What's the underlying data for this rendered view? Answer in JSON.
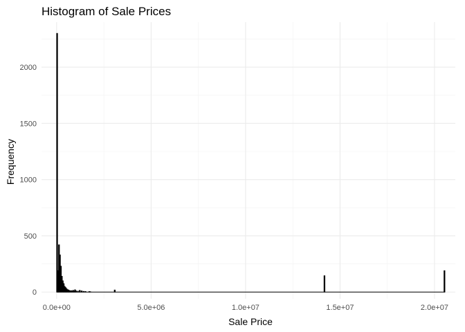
{
  "chart_data": {
    "type": "bar",
    "title": "Histogram of Sale Prices",
    "xlabel": "Sale Price",
    "ylabel": "Frequency",
    "xlim": [
      -800000,
      21100000
    ],
    "ylim": [
      -60,
      2400
    ],
    "x_ticks": [
      {
        "value": 0,
        "label": "0.0e+00"
      },
      {
        "value": 5000000,
        "label": "5.0e+06"
      },
      {
        "value": 10000000,
        "label": "1.0e+07"
      },
      {
        "value": 15000000,
        "label": "1.5e+07"
      },
      {
        "value": 20000000,
        "label": "2.0e+07"
      }
    ],
    "y_ticks": [
      {
        "value": 0,
        "label": "0"
      },
      {
        "value": 500,
        "label": "500"
      },
      {
        "value": 1000,
        "label": "1000"
      },
      {
        "value": 1500,
        "label": "1500"
      },
      {
        "value": 2000,
        "label": "2000"
      }
    ],
    "grid": true,
    "bin_width": 50000,
    "bins": [
      {
        "x": 0,
        "count": 2300
      },
      {
        "x": 50000,
        "count": 190
      },
      {
        "x": 100000,
        "count": 420
      },
      {
        "x": 150000,
        "count": 330
      },
      {
        "x": 200000,
        "count": 230
      },
      {
        "x": 250000,
        "count": 140
      },
      {
        "x": 300000,
        "count": 100
      },
      {
        "x": 350000,
        "count": 75
      },
      {
        "x": 400000,
        "count": 50
      },
      {
        "x": 450000,
        "count": 40
      },
      {
        "x": 500000,
        "count": 30
      },
      {
        "x": 550000,
        "count": 22
      },
      {
        "x": 600000,
        "count": 18
      },
      {
        "x": 650000,
        "count": 14
      },
      {
        "x": 700000,
        "count": 10
      },
      {
        "x": 750000,
        "count": 12
      },
      {
        "x": 800000,
        "count": 8
      },
      {
        "x": 850000,
        "count": 15
      },
      {
        "x": 900000,
        "count": 7
      },
      {
        "x": 950000,
        "count": 20
      },
      {
        "x": 1000000,
        "count": 10
      },
      {
        "x": 1100000,
        "count": 8
      },
      {
        "x": 1200000,
        "count": 15
      },
      {
        "x": 1300000,
        "count": 10
      },
      {
        "x": 1400000,
        "count": 6
      },
      {
        "x": 1500000,
        "count": 5
      },
      {
        "x": 1700000,
        "count": 4
      },
      {
        "x": 1750000,
        "count": 3
      },
      {
        "x": 3050000,
        "count": 18
      },
      {
        "x": 14150000,
        "count": 145
      },
      {
        "x": 20500000,
        "count": 190
      }
    ]
  },
  "colors": {
    "bar": "#000000",
    "grid_major": "#ebebeb",
    "grid_minor": "#f2f2f2",
    "background": "#ffffff"
  }
}
